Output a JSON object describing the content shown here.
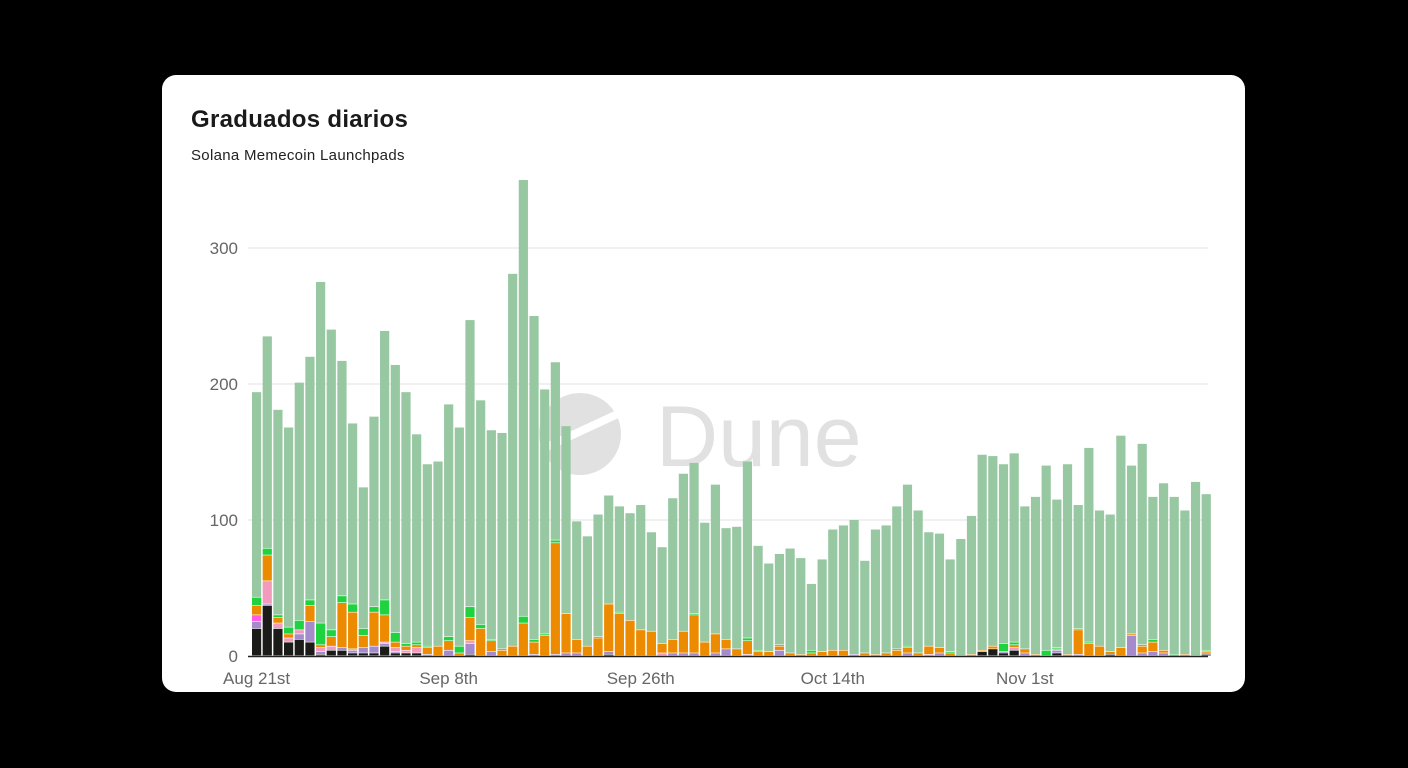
{
  "card": {
    "title": "Graduados diarios",
    "subtitle": "Solana Memecoin Launchpads"
  },
  "watermark": "Dune",
  "chart_data": {
    "type": "bar",
    "stacked": true,
    "title": "Graduados diarios",
    "subtitle": "Solana Memecoin Launchpads",
    "xlabel": "",
    "ylabel": "",
    "ylim": [
      0,
      350
    ],
    "yticks": [
      0,
      100,
      200,
      300
    ],
    "ytick_labels": [
      "0",
      "100",
      "200",
      "300"
    ],
    "xtick_labels": [
      "Aug 21st",
      "Sep 8th",
      "Sep 26th",
      "Oct 14th",
      "Nov 1st"
    ],
    "xtick_index": [
      0,
      18,
      36,
      54,
      72
    ],
    "x_start": "Aug 21",
    "x_end": "Nov 18",
    "bar_count": 90,
    "grid": true,
    "legend": "none",
    "series": [
      {
        "color": "#1b1b19",
        "values": [
          20,
          37,
          20,
          10,
          12,
          10,
          1,
          4,
          4,
          2,
          2,
          2,
          7,
          2,
          2,
          2,
          0,
          0,
          0,
          0,
          1,
          0,
          0,
          0,
          0,
          0,
          0,
          0,
          0,
          0,
          0,
          0,
          0,
          1,
          0,
          0,
          0,
          0,
          0,
          0,
          0,
          0,
          0,
          0,
          0,
          0,
          0,
          0,
          0,
          0,
          0,
          0,
          0,
          0,
          0,
          0,
          0,
          0,
          0,
          0,
          0,
          0,
          0,
          0,
          0,
          0,
          0,
          0,
          3,
          5,
          2,
          4,
          0,
          0,
          0,
          2,
          0,
          0,
          0,
          0,
          1,
          0,
          0,
          0,
          0,
          0,
          0,
          0,
          0,
          1
        ]
      },
      {
        "color": "#a58bcb",
        "values": [
          5,
          1,
          0,
          0,
          4,
          15,
          2,
          0,
          2,
          2,
          4,
          5,
          2,
          1,
          0,
          0,
          1,
          0,
          4,
          0,
          8,
          0,
          3,
          0,
          0,
          0,
          1,
          0,
          1,
          2,
          2,
          0,
          0,
          2,
          0,
          0,
          0,
          0,
          0,
          2,
          2,
          2,
          0,
          2,
          5,
          0,
          0,
          0,
          0,
          4,
          0,
          0,
          0,
          0,
          0,
          0,
          1,
          0,
          0,
          0,
          0,
          2,
          0,
          0,
          2,
          0,
          0,
          0,
          0,
          0,
          1,
          0,
          2,
          0,
          0,
          2,
          0,
          1,
          0,
          0,
          0,
          0,
          15,
          2,
          3,
          2,
          0,
          0,
          0,
          1
        ]
      },
      {
        "color": "#f29bbd",
        "values": [
          0,
          17,
          4,
          3,
          3,
          0,
          3,
          3,
          0,
          1,
          0,
          0,
          1,
          3,
          2,
          4,
          0,
          0,
          0,
          0,
          2,
          0,
          0,
          0,
          0,
          0,
          0,
          0,
          0,
          0,
          0,
          0,
          0,
          0,
          0,
          0,
          0,
          0,
          2,
          0,
          0,
          0,
          0,
          0,
          0,
          0,
          1,
          0,
          0,
          0,
          0,
          0,
          0,
          0,
          0,
          0,
          0,
          0,
          0,
          0,
          0,
          0,
          0,
          1,
          0,
          0,
          0,
          0,
          0,
          0,
          0,
          2,
          0,
          0,
          0,
          1,
          0,
          0,
          0,
          0,
          0,
          0,
          0,
          0,
          0,
          0,
          0,
          0,
          0,
          0
        ]
      },
      {
        "color": "#ff5ce6",
        "values": [
          5,
          0,
          0,
          0,
          0,
          0,
          0,
          0,
          0,
          0,
          0,
          0,
          0,
          0,
          0,
          0,
          0,
          0,
          0,
          0,
          0,
          0,
          0,
          0,
          0,
          0,
          0,
          0,
          0,
          0,
          0,
          0,
          0,
          0,
          0,
          0,
          0,
          0,
          0,
          0,
          0,
          0,
          0,
          0,
          0,
          0,
          0,
          0,
          0,
          0,
          0,
          0,
          0,
          0,
          0,
          0,
          0,
          0,
          0,
          0,
          0,
          0,
          0,
          0,
          0,
          0,
          0,
          0,
          0,
          0,
          0,
          0,
          0,
          0,
          0,
          0,
          0,
          0,
          0,
          0,
          0,
          0,
          0,
          0,
          0,
          0,
          0,
          0,
          0,
          0
        ]
      },
      {
        "color": "#ed8b00",
        "values": [
          7,
          19,
          4,
          3,
          0,
          12,
          2,
          7,
          33,
          27,
          9,
          25,
          20,
          4,
          3,
          2,
          5,
          7,
          7,
          2,
          17,
          20,
          8,
          4,
          7,
          24,
          9,
          15,
          82,
          29,
          10,
          7,
          13,
          35,
          31,
          26,
          19,
          18,
          7,
          10,
          16,
          28,
          10,
          14,
          7,
          5,
          10,
          3,
          3,
          3,
          2,
          1,
          2,
          3,
          4,
          4,
          0,
          2,
          1,
          2,
          4,
          4,
          2,
          6,
          4,
          2,
          0,
          1,
          1,
          2,
          0,
          2,
          3,
          1,
          0,
          0,
          1,
          18,
          9,
          7,
          2,
          6,
          1,
          5,
          7,
          2,
          0,
          1,
          0,
          1
        ]
      },
      {
        "color": "#1ed33f",
        "values": [
          6,
          5,
          2,
          5,
          7,
          4,
          16,
          5,
          5,
          6,
          5,
          4,
          11,
          7,
          2,
          2,
          1,
          0,
          3,
          5,
          8,
          3,
          1,
          1,
          0,
          5,
          2,
          1,
          2,
          0,
          0,
          0,
          1,
          0,
          1,
          0,
          0,
          0,
          0,
          0,
          0,
          1,
          0,
          0,
          0,
          0,
          2,
          1,
          0,
          1,
          0,
          0,
          2,
          0,
          0,
          0,
          0,
          0,
          0,
          0,
          1,
          1,
          0,
          0,
          0,
          1,
          0,
          0,
          0,
          0,
          6,
          2,
          0,
          0,
          4,
          1,
          0,
          1,
          1,
          0,
          0,
          0,
          0,
          1,
          2,
          0,
          1,
          0,
          0,
          1
        ]
      },
      {
        "color": "#97c8a2",
        "values": [
          151,
          156,
          151,
          147,
          175,
          179,
          251,
          221,
          173,
          133,
          104,
          140,
          198,
          197,
          185,
          153,
          134,
          136,
          171,
          161,
          211,
          165,
          154,
          159,
          274,
          321,
          238,
          180,
          131,
          138,
          87,
          81,
          90,
          80,
          78,
          79,
          92,
          73,
          71,
          104,
          116,
          111,
          88,
          110,
          82,
          90,
          130,
          77,
          65,
          67,
          77,
          71,
          49,
          68,
          89,
          92,
          99,
          68,
          92,
          94,
          105,
          119,
          105,
          84,
          84,
          68,
          86,
          102,
          144,
          140,
          132,
          139,
          105,
          116,
          136,
          109,
          140,
          91,
          143,
          100,
          101,
          156,
          124,
          148,
          105,
          123,
          116,
          106,
          128,
          115
        ]
      }
    ]
  }
}
